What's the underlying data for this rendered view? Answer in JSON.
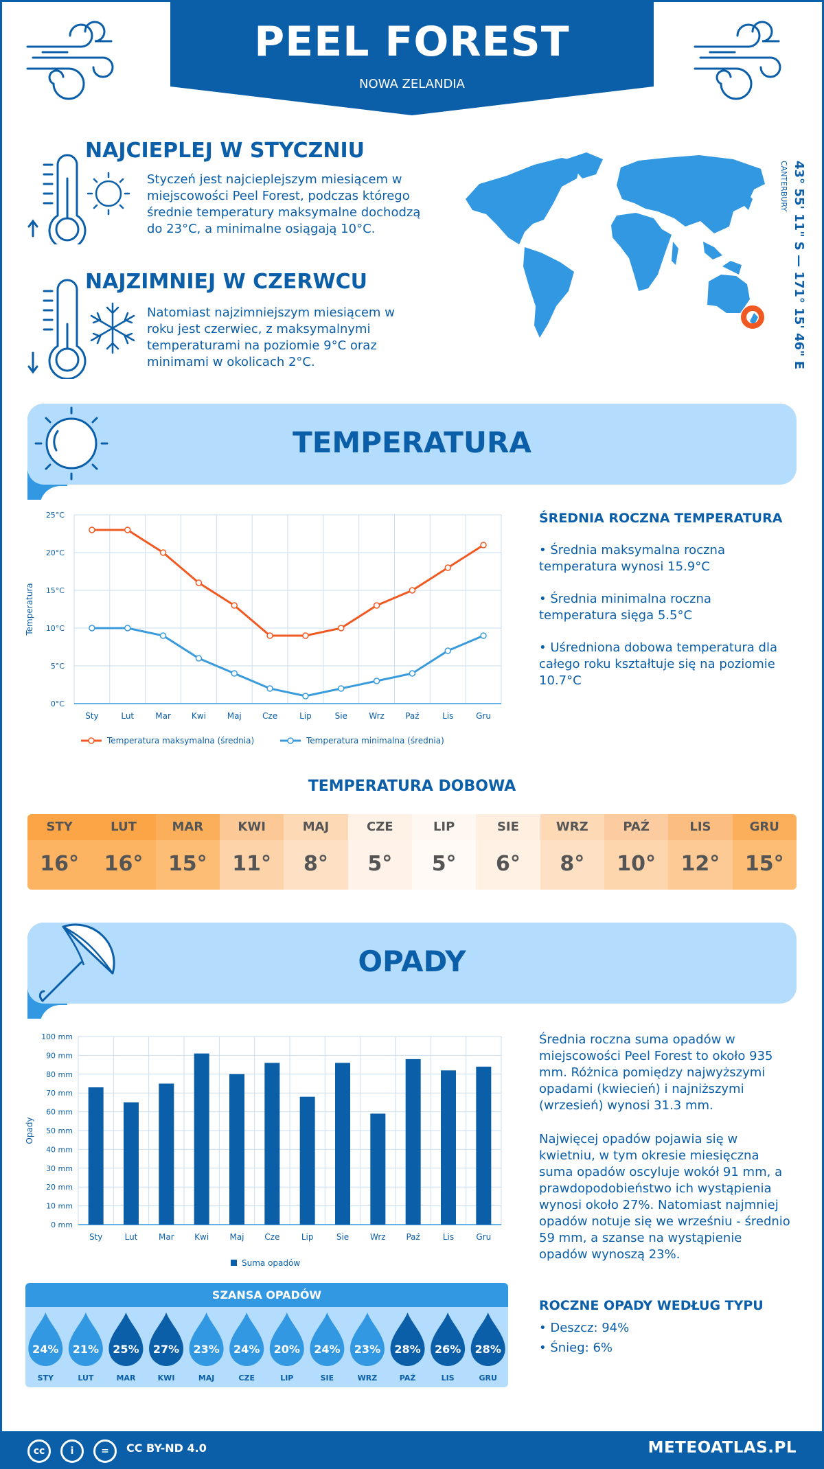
{
  "header": {
    "title": "PEEL FOREST",
    "subtitle": "NOWA ZELANDIA"
  },
  "warmest": {
    "title": "NAJCIEPLEJ W STYCZNIU",
    "text": "Styczeń jest najcieplejszym miesiącem w miejscowości Peel Forest, podczas którego średnie temperatury maksymalne dochodzą do 23°C, a minimalne osiągają 10°C."
  },
  "coldest": {
    "title": "NAJZIMNIEJ W CZERWCU",
    "text": "Natomiast najzimniejszym miesiącem w roku jest czerwiec, z maksymalnymi temperaturami na poziomie 9°C oraz minimami w okolicach 2°C."
  },
  "location": {
    "coords": "43° 55' 11\" S — 171° 15' 46\" E",
    "region": "CANTERBURY"
  },
  "temperature": {
    "section_title": "TEMPERATURA",
    "stats_title": "ŚREDNIA ROCZNA TEMPERATURA",
    "stats": [
      "• Średnia maksymalna roczna temperatura wynosi 15.9°C",
      "• Średnia minimalna roczna temperatura sięga 5.5°C",
      "• Uśredniona dobowa temperatura dla całego roku kształtuje się na poziomie 10.7°C"
    ],
    "daily_title": "TEMPERATURA DOBOWA",
    "daily": {
      "months": [
        "STY",
        "LUT",
        "MAR",
        "KWI",
        "MAJ",
        "CZE",
        "LIP",
        "SIE",
        "WRZ",
        "PAŹ",
        "LIS",
        "GRU"
      ],
      "values": [
        "16°",
        "16°",
        "15°",
        "11°",
        "8°",
        "5°",
        "5°",
        "6°",
        "8°",
        "10°",
        "12°",
        "15°"
      ],
      "header_colors": [
        "#fba547",
        "#fba547",
        "#fbaf5b",
        "#fcc896",
        "#fdd9b5",
        "#fef1e6",
        "#fff8f2",
        "#feefe1",
        "#fdd9b5",
        "#fcccA0",
        "#fcbd81",
        "#fbaf5b"
      ],
      "value_colors": [
        "#fdb462",
        "#fdb462",
        "#fdbd74",
        "#fdd3a9",
        "#fee1c4",
        "#fff3e9",
        "#fffaf5",
        "#fff1e4",
        "#fee1c4",
        "#fdd6ae",
        "#fdca95",
        "#fdbd74"
      ]
    }
  },
  "chart_data": [
    {
      "type": "line",
      "ylabel": "Temperatura",
      "categories": [
        "Sty",
        "Lut",
        "Mar",
        "Kwi",
        "Maj",
        "Cze",
        "Lip",
        "Sie",
        "Wrz",
        "Paź",
        "Lis",
        "Gru"
      ],
      "yticks": [
        "0°C",
        "5°C",
        "10°C",
        "15°C",
        "20°C",
        "25°C"
      ],
      "ylim": [
        0,
        25
      ],
      "series": [
        {
          "name": "Temperatura maksymalna (średnia)",
          "values": [
            23,
            23,
            20,
            16,
            13,
            9,
            9,
            10,
            13,
            15,
            18,
            21
          ],
          "color": "#f05a22"
        },
        {
          "name": "Temperatura minimalna (średnia)",
          "values": [
            10,
            10,
            9,
            6,
            4,
            2,
            1,
            2,
            3,
            4,
            7,
            9
          ],
          "color": "#3a9bdc"
        }
      ],
      "grid": true,
      "legend": "bottom"
    },
    {
      "type": "bar",
      "ylabel": "Opady",
      "categories": [
        "Sty",
        "Lut",
        "Mar",
        "Kwi",
        "Maj",
        "Cze",
        "Lip",
        "Sie",
        "Wrz",
        "Paź",
        "Lis",
        "Gru"
      ],
      "yticks": [
        "0 mm",
        "10 mm",
        "20 mm",
        "30 mm",
        "40 mm",
        "50 mm",
        "60 mm",
        "70 mm",
        "80 mm",
        "90 mm",
        "100 mm"
      ],
      "ylim": [
        0,
        100
      ],
      "series": [
        {
          "name": "Suma opadów",
          "values": [
            73,
            65,
            75,
            91,
            80,
            86,
            68,
            86,
            59,
            88,
            82,
            84
          ],
          "color": "#0b5ea8"
        }
      ],
      "grid": true,
      "legend": "bottom"
    }
  ],
  "precip": {
    "section_title": "OPADY",
    "text1": "Średnia roczna suma opadów w miejscowości Peel Forest to około 935 mm. Różnica pomiędzy najwyższymi opadami (kwiecień) i najniższymi (wrzesień) wynosi 31.3 mm.",
    "text2": "Najwięcej opadów pojawia się w kwietniu, w tym okresie miesięczna suma opadów oscyluje wokół 91 mm, a prawdopodobieństwo ich wystąpienia wynosi około 27%. Natomiast najmniej opadów notuje się we wrześniu - średnio 59 mm, a szanse na wystąpienie opadów wynoszą 23%.",
    "chance_title": "SZANSA OPADÓW",
    "chance": {
      "months": [
        "STY",
        "LUT",
        "MAR",
        "KWI",
        "MAJ",
        "CZE",
        "LIP",
        "SIE",
        "WRZ",
        "PAŹ",
        "LIS",
        "GRU"
      ],
      "values": [
        "24%",
        "21%",
        "25%",
        "27%",
        "23%",
        "24%",
        "20%",
        "24%",
        "23%",
        "28%",
        "26%",
        "28%"
      ],
      "colors": [
        "#3298e2",
        "#3298e2",
        "#0b5ea8",
        "#0b5ea8",
        "#3298e2",
        "#3298e2",
        "#3298e2",
        "#3298e2",
        "#3298e2",
        "#0b5ea8",
        "#0b5ea8",
        "#0b5ea8"
      ]
    },
    "types_title": "ROCZNE OPADY WEDŁUG TYPU",
    "types": [
      "• Deszcz: 94%",
      "• Śnieg: 6%"
    ]
  },
  "footer": {
    "license": "CC BY-ND 4.0",
    "site": "METEOATLAS.PL"
  }
}
